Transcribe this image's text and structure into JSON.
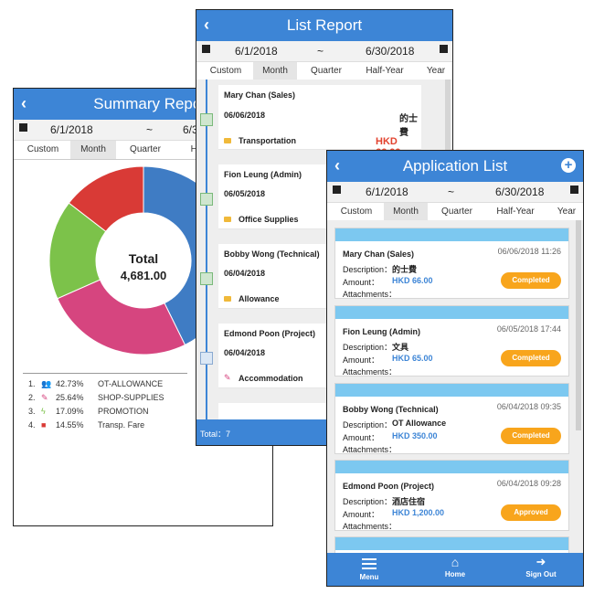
{
  "summary": {
    "title": "Summary Report",
    "date_from": "6/1/2018",
    "tilde": "~",
    "date_to_partial": "6/3",
    "tabs": [
      "Custom",
      "Month",
      "Quarter",
      "Ha"
    ],
    "selected_tab": "Month",
    "total_label": "Total",
    "total_value": "4,681.00",
    "legend": [
      {
        "num": "1.",
        "icon": "users-icon",
        "pct": "42.73%",
        "label": "OT-ALLOWANCE",
        "color": "#3f7cc4"
      },
      {
        "num": "2.",
        "icon": "paperclip-icon",
        "pct": "25.64%",
        "label": "SHOP-SUPPLIES",
        "color": "#d6457f"
      },
      {
        "num": "3.",
        "icon": "bolt-icon",
        "pct": "17.09%",
        "label": "PROMOTION",
        "color": "#7cc24a"
      },
      {
        "num": "4.",
        "icon": "truck-icon",
        "pct": "14.55%",
        "label": "Transp. Fare",
        "color": "#d93a36"
      }
    ]
  },
  "list_report": {
    "title": "List Report",
    "date_from": "6/1/2018",
    "tilde": "~",
    "date_to": "6/30/2018",
    "tabs": [
      "Custom",
      "Month",
      "Quarter",
      "Half-Year",
      "Year"
    ],
    "selected_tab": "Month",
    "items": [
      {
        "name": "Mary Chan (Sales)",
        "date": "06/06/2018",
        "desc": "的士費",
        "category": "Transportation",
        "amount": "HKD 66.00",
        "icon": "calendar-check-icon"
      },
      {
        "name": "Fion Leung (Admin)",
        "date": "06/05/2018",
        "desc": "",
        "category": "Office Supplies",
        "amount": "",
        "icon": "calendar-check-icon"
      },
      {
        "name": "Bobby Wong (Technical)",
        "date": "06/04/2018",
        "desc": "",
        "category": "Allowance",
        "amount": "",
        "icon": "calendar-check-icon"
      },
      {
        "name": "Edmond Poon (Project)",
        "date": "06/04/2018",
        "desc": "",
        "category": "Accommodation",
        "amount": "",
        "icon": "hourglass-icon"
      }
    ],
    "total": "Total：7"
  },
  "application_list": {
    "title": "Application List",
    "date_from": "6/1/2018",
    "tilde": "~",
    "date_to": "6/30/2018",
    "tabs": [
      "Custom",
      "Month",
      "Quarter",
      "Half-Year",
      "Year"
    ],
    "selected_tab": "Month",
    "description_label": "Description：",
    "amount_label": "Amount：",
    "attachments_label": "Attachments：",
    "items": [
      {
        "name": "Mary Chan (Sales)",
        "datetime": "06/06/2018 11:26",
        "description": "的士費",
        "amount": "HKD 66.00",
        "status": "Completed"
      },
      {
        "name": "Fion Leung (Admin)",
        "datetime": "06/05/2018 17:44",
        "description": "文具",
        "amount": "HKD 65.00",
        "status": "Completed"
      },
      {
        "name": "Bobby Wong (Technical)",
        "datetime": "06/04/2018 09:35",
        "description": "OT Allowance",
        "amount": "HKD 350.00",
        "status": "Completed"
      },
      {
        "name": "Edmond Poon (Project)",
        "datetime": "06/04/2018 09:28",
        "description": "酒店住宿",
        "amount": "HKD 1,200.00",
        "status": "Approved"
      }
    ],
    "footer": [
      {
        "label": "Menu",
        "icon": "menu-icon"
      },
      {
        "label": "Home",
        "icon": "home-icon"
      },
      {
        "label": "Sign Out",
        "icon": "sign-out-icon"
      }
    ]
  },
  "chart_data": {
    "type": "pie",
    "categories": [
      "OT-ALLOWANCE",
      "SHOP-SUPPLIES",
      "PROMOTION",
      "Transp. Fare"
    ],
    "values": [
      42.73,
      25.64,
      17.09,
      14.55
    ],
    "colors": [
      "#3f7cc4",
      "#d6457f",
      "#7cc24a",
      "#d93a36"
    ],
    "title": "",
    "center_label": "Total",
    "center_value": "4,681.00"
  }
}
